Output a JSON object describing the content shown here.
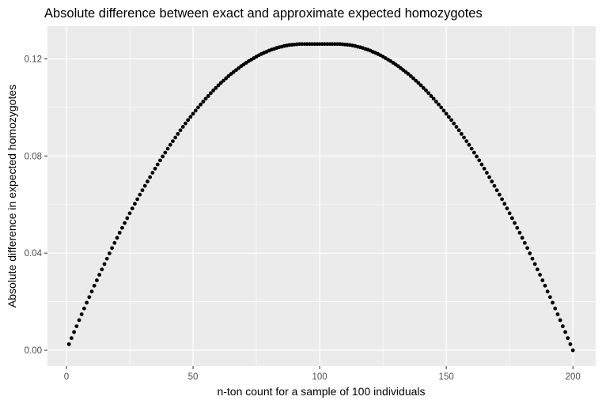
{
  "chart_data": {
    "type": "scatter",
    "title": "Absolute difference between exact and approximate expected homozygotes",
    "xlabel": "n-ton count for a sample of 100 individuals",
    "ylabel": "Absolute difference in expected homozygotes",
    "xlim": [
      -7.5,
      209
    ],
    "ylim": [
      -0.0065,
      0.1335
    ],
    "x_ticks": [
      0,
      50,
      100,
      150,
      200
    ],
    "x_tick_labels": [
      "0",
      "50",
      "100",
      "150",
      "200"
    ],
    "y_ticks": [
      0.0,
      0.04,
      0.08,
      0.12
    ],
    "y_tick_labels": [
      "0.00",
      "0.04",
      "0.08",
      "0.12"
    ],
    "grid": true,
    "legend": "none",
    "colors": {
      "panel": "#ebebeb",
      "grid": "#ffffff",
      "point": "#000000"
    },
    "series": [
      {
        "points": [
          [
            1,
            0.0025
          ],
          [
            2,
            0.005
          ],
          [
            3,
            0.0075
          ],
          [
            4,
            0.0099
          ],
          [
            5,
            0.0124
          ],
          [
            6,
            0.0148
          ],
          [
            7,
            0.0172
          ],
          [
            8,
            0.0196
          ],
          [
            9,
            0.0219
          ],
          [
            10,
            0.0242
          ],
          [
            11,
            0.0266
          ],
          [
            12,
            0.0288
          ],
          [
            13,
            0.0311
          ],
          [
            14,
            0.0333
          ],
          [
            15,
            0.0355
          ],
          [
            16,
            0.0377
          ],
          [
            17,
            0.0399
          ],
          [
            18,
            0.0421
          ],
          [
            19,
            0.0442
          ],
          [
            20,
            0.0463
          ],
          [
            21,
            0.0484
          ],
          [
            22,
            0.0504
          ],
          [
            23,
            0.0524
          ],
          [
            24,
            0.0544
          ],
          [
            25,
            0.0564
          ],
          [
            26,
            0.0584
          ],
          [
            27,
            0.0603
          ],
          [
            28,
            0.0622
          ],
          [
            29,
            0.0641
          ],
          [
            30,
            0.0659
          ],
          [
            31,
            0.0677
          ],
          [
            32,
            0.0695
          ],
          [
            33,
            0.0713
          ],
          [
            34,
            0.0731
          ],
          [
            35,
            0.0748
          ],
          [
            36,
            0.0765
          ],
          [
            37,
            0.0782
          ],
          [
            38,
            0.0798
          ],
          [
            39,
            0.0814
          ],
          [
            40,
            0.083
          ],
          [
            41,
            0.0846
          ],
          [
            42,
            0.0861
          ],
          [
            43,
            0.0876
          ],
          [
            44,
            0.0891
          ],
          [
            45,
            0.0906
          ],
          [
            46,
            0.092
          ],
          [
            47,
            0.0934
          ],
          [
            48,
            0.0948
          ],
          [
            49,
            0.0961
          ],
          [
            50,
            0.0974
          ],
          [
            51,
            0.0987
          ],
          [
            52,
            0.1
          ],
          [
            53,
            0.1012
          ],
          [
            54,
            0.1024
          ],
          [
            55,
            0.1036
          ],
          [
            56,
            0.1047
          ],
          [
            57,
            0.1059
          ],
          [
            58,
            0.107
          ],
          [
            59,
            0.108
          ],
          [
            60,
            0.1091
          ],
          [
            61,
            0.1101
          ],
          [
            62,
            0.111
          ],
          [
            63,
            0.112
          ],
          [
            64,
            0.1129
          ],
          [
            65,
            0.1138
          ],
          [
            66,
            0.1146
          ],
          [
            67,
            0.1154
          ],
          [
            68,
            0.1162
          ],
          [
            69,
            0.117
          ],
          [
            70,
            0.1177
          ],
          [
            71,
            0.1184
          ],
          [
            72,
            0.1191
          ],
          [
            73,
            0.1197
          ],
          [
            74,
            0.1203
          ],
          [
            75,
            0.1209
          ],
          [
            76,
            0.1215
          ],
          [
            77,
            0.122
          ],
          [
            78,
            0.1225
          ],
          [
            79,
            0.1229
          ],
          [
            80,
            0.1234
          ],
          [
            81,
            0.1238
          ],
          [
            82,
            0.1241
          ],
          [
            83,
            0.1245
          ],
          [
            84,
            0.1248
          ],
          [
            85,
            0.125
          ],
          [
            86,
            0.1253
          ],
          [
            87,
            0.1255
          ],
          [
            88,
            0.1257
          ],
          [
            89,
            0.1258
          ],
          [
            90,
            0.1259
          ],
          [
            91,
            0.126
          ],
          [
            92,
            0.1261
          ],
          [
            93,
            0.1261
          ],
          [
            94,
            0.1261
          ],
          [
            95,
            0.1261
          ],
          [
            96,
            0.1261
          ],
          [
            97,
            0.1261
          ],
          [
            98,
            0.1261
          ],
          [
            99,
            0.1261
          ],
          [
            100,
            0.1261
          ],
          [
            101,
            0.1261
          ],
          [
            102,
            0.1261
          ],
          [
            103,
            0.1261
          ],
          [
            104,
            0.1261
          ],
          [
            105,
            0.1261
          ],
          [
            106,
            0.1261
          ],
          [
            107,
            0.1261
          ],
          [
            108,
            0.1261
          ],
          [
            109,
            0.126
          ],
          [
            110,
            0.1259
          ],
          [
            111,
            0.1258
          ],
          [
            112,
            0.1257
          ],
          [
            113,
            0.1255
          ],
          [
            114,
            0.1253
          ],
          [
            115,
            0.125
          ],
          [
            116,
            0.1248
          ],
          [
            117,
            0.1245
          ],
          [
            118,
            0.1241
          ],
          [
            119,
            0.1238
          ],
          [
            120,
            0.1234
          ],
          [
            121,
            0.1229
          ],
          [
            122,
            0.1225
          ],
          [
            123,
            0.122
          ],
          [
            124,
            0.1215
          ],
          [
            125,
            0.1209
          ],
          [
            126,
            0.1203
          ],
          [
            127,
            0.1197
          ],
          [
            128,
            0.1191
          ],
          [
            129,
            0.1184
          ],
          [
            130,
            0.1177
          ],
          [
            131,
            0.117
          ],
          [
            132,
            0.1162
          ],
          [
            133,
            0.1154
          ],
          [
            134,
            0.1146
          ],
          [
            135,
            0.1138
          ],
          [
            136,
            0.1129
          ],
          [
            137,
            0.112
          ],
          [
            138,
            0.111
          ],
          [
            139,
            0.1101
          ],
          [
            140,
            0.1091
          ],
          [
            141,
            0.108
          ],
          [
            142,
            0.107
          ],
          [
            143,
            0.1059
          ],
          [
            144,
            0.1047
          ],
          [
            145,
            0.1036
          ],
          [
            146,
            0.1024
          ],
          [
            147,
            0.1012
          ],
          [
            148,
            0.1
          ],
          [
            149,
            0.0987
          ],
          [
            150,
            0.0974
          ],
          [
            151,
            0.0961
          ],
          [
            152,
            0.0948
          ],
          [
            153,
            0.0934
          ],
          [
            154,
            0.092
          ],
          [
            155,
            0.0906
          ],
          [
            156,
            0.0891
          ],
          [
            157,
            0.0876
          ],
          [
            158,
            0.0861
          ],
          [
            159,
            0.0846
          ],
          [
            160,
            0.083
          ],
          [
            161,
            0.0814
          ],
          [
            162,
            0.0798
          ],
          [
            163,
            0.0782
          ],
          [
            164,
            0.0765
          ],
          [
            165,
            0.0748
          ],
          [
            166,
            0.0731
          ],
          [
            167,
            0.0713
          ],
          [
            168,
            0.0695
          ],
          [
            169,
            0.0677
          ],
          [
            170,
            0.0659
          ],
          [
            171,
            0.0641
          ],
          [
            172,
            0.0622
          ],
          [
            173,
            0.0603
          ],
          [
            174,
            0.0584
          ],
          [
            175,
            0.0564
          ],
          [
            176,
            0.0544
          ],
          [
            177,
            0.0524
          ],
          [
            178,
            0.0504
          ],
          [
            179,
            0.0484
          ],
          [
            180,
            0.0463
          ],
          [
            181,
            0.0442
          ],
          [
            182,
            0.0421
          ],
          [
            183,
            0.0399
          ],
          [
            184,
            0.0377
          ],
          [
            185,
            0.0355
          ],
          [
            186,
            0.0333
          ],
          [
            187,
            0.0311
          ],
          [
            188,
            0.0288
          ],
          [
            189,
            0.0266
          ],
          [
            190,
            0.0242
          ],
          [
            191,
            0.0219
          ],
          [
            192,
            0.0196
          ],
          [
            193,
            0.0172
          ],
          [
            194,
            0.0148
          ],
          [
            195,
            0.0124
          ],
          [
            196,
            0.0099
          ],
          [
            197,
            0.0075
          ],
          [
            198,
            0.005
          ],
          [
            199,
            0.0025
          ],
          [
            200,
            0.0
          ]
        ]
      }
    ]
  }
}
